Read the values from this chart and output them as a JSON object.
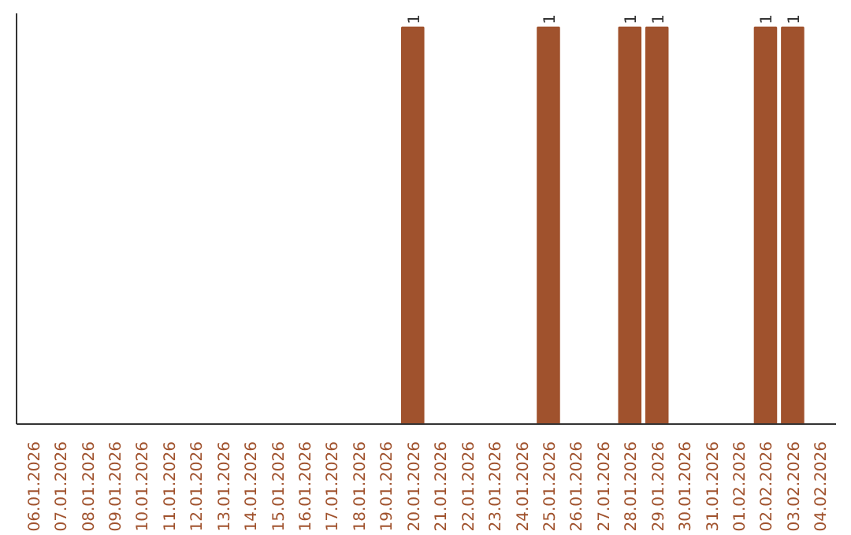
{
  "chart_data": {
    "type": "bar",
    "color": "#a0522d",
    "categories": [
      "06.01.2026",
      "07.01.2026",
      "08.01.2026",
      "09.01.2026",
      "10.01.2026",
      "11.01.2026",
      "12.01.2026",
      "13.01.2026",
      "14.01.2026",
      "15.01.2026",
      "16.01.2026",
      "17.01.2026",
      "18.01.2026",
      "19.01.2026",
      "20.01.2026",
      "21.01.2026",
      "22.01.2026",
      "23.01.2026",
      "24.01.2026",
      "25.01.2026",
      "26.01.2026",
      "27.01.2026",
      "28.01.2026",
      "29.01.2026",
      "30.01.2026",
      "31.01.2026",
      "01.02.2026",
      "02.02.2026",
      "03.02.2026",
      "04.02.2026"
    ],
    "values": [
      null,
      null,
      null,
      null,
      null,
      null,
      null,
      null,
      null,
      null,
      null,
      null,
      null,
      null,
      1,
      null,
      null,
      null,
      null,
      1,
      null,
      null,
      1,
      1,
      null,
      null,
      null,
      1,
      1,
      null
    ],
    "data_labels": true,
    "grid": false
  }
}
